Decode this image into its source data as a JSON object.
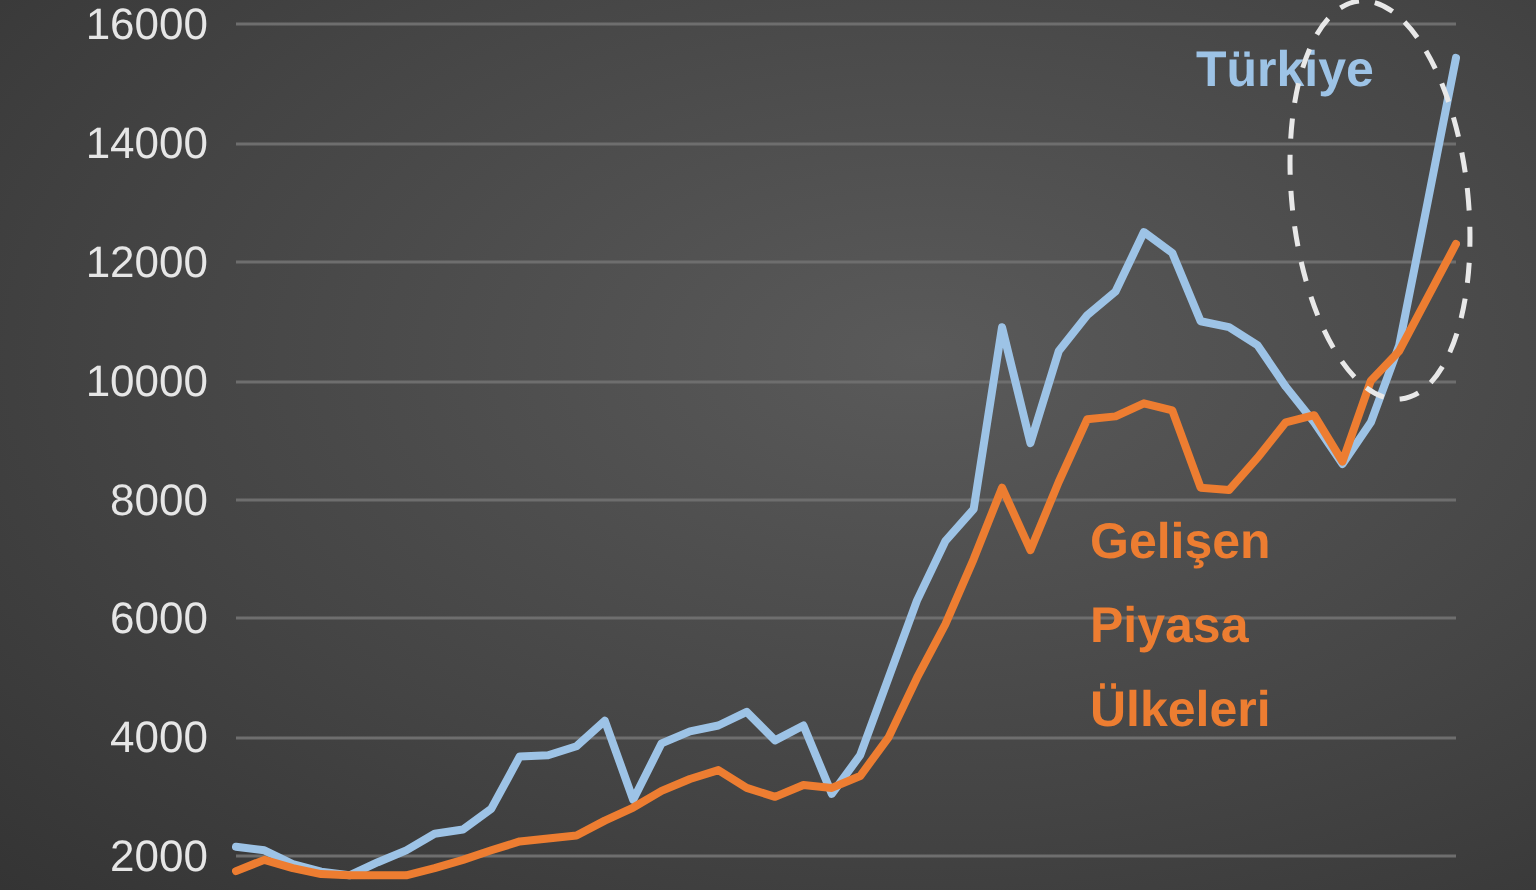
{
  "chart_data": {
    "type": "line",
    "categories": [
      null,
      null,
      null,
      null,
      null,
      null,
      null,
      null,
      null,
      null,
      null,
      null,
      null,
      null,
      null,
      null,
      null,
      null,
      null,
      null,
      null,
      null,
      null,
      null,
      null,
      null,
      null,
      null,
      null,
      null,
      null,
      null,
      null,
      null,
      null,
      null,
      null,
      null,
      null,
      null,
      null,
      null,
      null,
      null
    ],
    "series": [
      {
        "name": "Türkiye",
        "color": "#9dc3e6",
        "values": [
          2160,
          2100,
          1870,
          1740,
          1680,
          1900,
          2100,
          2380,
          2450,
          2800,
          3680,
          3700,
          3850,
          4280,
          2950,
          3900,
          4100,
          4200,
          4430,
          3950,
          4200,
          3050,
          3700,
          5000,
          6300,
          7300,
          7840,
          10900,
          8950,
          10500,
          11100,
          11500,
          12500,
          12150,
          11000,
          10900,
          10600,
          9900,
          9300,
          8600,
          9300,
          10600,
          13000,
          15430
        ]
      },
      {
        "name": "Gelişen Piyasa Ülkeleri",
        "color": "#ed7d31",
        "values": [
          1750,
          1940,
          1800,
          1700,
          1680,
          1680,
          1680,
          1800,
          1940,
          2100,
          2250,
          2300,
          2350,
          2600,
          2820,
          3100,
          3300,
          3450,
          3150,
          3000,
          3200,
          3150,
          3350,
          4000,
          5000,
          5900,
          7000,
          8200,
          7150,
          8300,
          9350,
          9400,
          9620,
          9500,
          8200,
          8160,
          8700,
          9300,
          9420,
          8640,
          10000,
          10500,
          11400,
          12300
        ]
      }
    ],
    "ylim": [
      1500,
      16000
    ],
    "yticks": [
      2000,
      4000,
      6000,
      8000,
      10000,
      12000,
      14000,
      16000
    ],
    "grid": "y",
    "legend": false,
    "marker": "none",
    "line_style": "solid",
    "tick_labels": "y"
  }
}
